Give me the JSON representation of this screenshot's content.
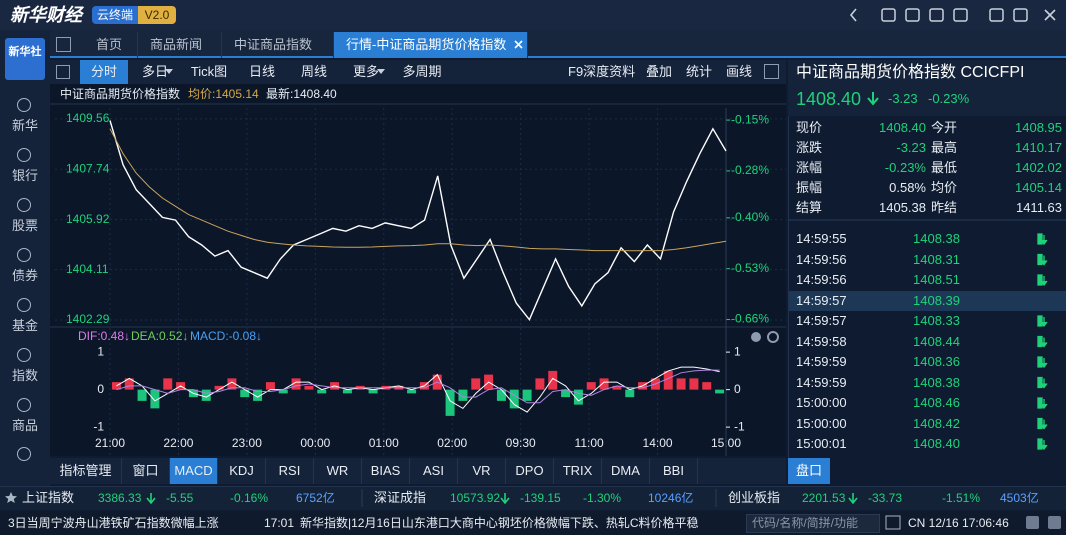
{
  "header": {
    "logo": "新华财经",
    "badge": "云终端",
    "version": "V2.0"
  },
  "sidebar": {
    "logo": "新华社",
    "items": [
      "新华",
      "银行",
      "股票",
      "债券",
      "基金",
      "指数",
      "商品"
    ]
  },
  "tabs": [
    "首页",
    "商品新闻",
    "中证商品指数",
    "行情-中证商品期货价格指数"
  ],
  "toolbar": {
    "left": [
      "分时",
      "多日",
      "Tick图",
      "日线",
      "周线",
      "更多",
      "多周期"
    ],
    "right": [
      "F9深度资料",
      "叠加",
      "统计",
      "画线"
    ]
  },
  "chart_info": {
    "name": "中证商品期货价格指数",
    "avg": "均价:1405.14",
    "last": "最新:1408.40"
  },
  "chart_data": [
    {
      "type": "line",
      "x_labels": [
        "21:00",
        "22:00",
        "23:00",
        "00:00",
        "01:00",
        "02:00",
        "09:30",
        "11:00",
        "14:00",
        "15:00"
      ],
      "series": [
        {
          "color": "#ffffff",
          "values": [
            1409.5,
            1407.9,
            1407.0,
            1406.5,
            1406.0,
            1405.9,
            1405.3,
            1405.0,
            1404.6,
            1404.8,
            1404.2,
            1404.0,
            1403.8,
            1404.5,
            1405.0,
            1405.2,
            1405.4,
            1405.6,
            1405.5,
            1405.7,
            1405.6,
            1405.8,
            1405.7,
            1405.6,
            1405.9,
            1407.5,
            1405.0,
            1403.8,
            1404.5,
            1405.2,
            1404.0,
            1402.9,
            1402.3,
            1403.4,
            1404.5,
            1403.5,
            1402.8,
            1403.6,
            1404.0,
            1404.9,
            1404.4,
            1405.0,
            1404.5,
            1406.2,
            1407.3,
            1408.3,
            1409.2,
            1408.4
          ]
        },
        {
          "color": "#c9a55a",
          "values": [
            1409.2,
            1408.3,
            1407.6,
            1407.1,
            1406.7,
            1406.4,
            1406.1,
            1405.9,
            1405.7,
            1405.5,
            1405.35,
            1405.2,
            1405.1,
            1405.05,
            1405.0,
            1404.97,
            1404.95,
            1404.93,
            1404.92,
            1404.92,
            1404.93,
            1404.95,
            1404.97,
            1404.98,
            1405.0,
            1405.05,
            1405.05,
            1405.0,
            1404.98,
            1405.0,
            1404.97,
            1404.93,
            1404.88,
            1404.86,
            1404.86,
            1404.84,
            1404.82,
            1404.8,
            1404.8,
            1404.8,
            1404.79,
            1404.8,
            1404.8,
            1404.84,
            1404.9,
            1404.98,
            1405.06,
            1405.14
          ]
        }
      ],
      "ylim": [
        1402.11,
        1409.7
      ],
      "yticks": [
        1409.56,
        1407.74,
        1405.92,
        1404.11,
        1402.29
      ],
      "y2lim": [
        -0.674,
        -0.137
      ],
      "y2ticks": [
        {
          "value": -0.15,
          "label": "-0.15%"
        },
        {
          "value": -0.28,
          "label": "-0.28%"
        },
        {
          "value": -0.4,
          "label": "-0.40%"
        },
        {
          "value": -0.53,
          "label": "-0.53%"
        },
        {
          "value": -0.66,
          "label": "-0.66%"
        }
      ],
      "grid": true
    },
    {
      "type": "bar",
      "legend": [
        {
          "label": "DIF:0.48↓",
          "color": "#e07ce8"
        },
        {
          "label": "DEA:0.52↓",
          "color": "#6fcf5a"
        },
        {
          "label": "MACD:-0.08↓",
          "color": "#4aa0f0"
        }
      ],
      "values": [
        0.2,
        0.3,
        -0.3,
        -0.5,
        0.3,
        0.2,
        -0.2,
        -0.3,
        0.1,
        0.3,
        -0.2,
        -0.3,
        0.2,
        -0.1,
        0.3,
        0.1,
        -0.1,
        0.2,
        -0.1,
        0.1,
        -0.1,
        0.1,
        0.1,
        -0.1,
        0.2,
        0.4,
        -0.7,
        -0.3,
        0.3,
        0.4,
        -0.3,
        -0.5,
        -0.3,
        0.3,
        0.5,
        -0.2,
        -0.4,
        0.2,
        0.3,
        0.1,
        -0.2,
        0.2,
        0.3,
        0.5,
        0.3,
        0.3,
        0.2,
        -0.1
      ],
      "colors": {
        "up": "#e8334a",
        "down": "#1cc47e"
      },
      "series": [
        {
          "color": "#ffffff",
          "values": [
            0.1,
            0.3,
            0.1,
            -0.3,
            -0.1,
            0.1,
            -0.1,
            -0.2,
            0,
            0.2,
            0,
            -0.2,
            0,
            0,
            0.2,
            0.2,
            0,
            0.1,
            0,
            0.05,
            0,
            0.05,
            0.1,
            0,
            0.1,
            0.4,
            -0.3,
            -0.5,
            -0.1,
            0.2,
            0,
            -0.4,
            -0.6,
            -0.2,
            0.3,
            0.1,
            -0.3,
            -0.1,
            0.2,
            0.2,
            0,
            0.1,
            0.3,
            0.5,
            0.6,
            0.6,
            0.55,
            0.48
          ]
        },
        {
          "color": "#b084e0",
          "values": [
            0,
            0.1,
            0.1,
            0,
            -0.1,
            0,
            0,
            -0.1,
            -0.05,
            0.05,
            0.05,
            -0.05,
            -0.05,
            0,
            0.1,
            0.15,
            0.1,
            0.05,
            0.05,
            0.05,
            0.05,
            0.05,
            0.05,
            0.05,
            0.05,
            0.2,
            0.05,
            -0.2,
            -0.2,
            0,
            0.05,
            -0.15,
            -0.35,
            -0.35,
            -0.05,
            0,
            -0.1,
            -0.15,
            0,
            0.1,
            0.05,
            0.05,
            0.15,
            0.3,
            0.45,
            0.5,
            0.52,
            0.52
          ]
        }
      ],
      "ylim": [
        -1.13,
        1.19
      ],
      "yticks": [
        1,
        0,
        -1
      ]
    }
  ],
  "indicator_tabs": [
    "指标管理",
    "窗口",
    "MACD",
    "KDJ",
    "RSI",
    "WR",
    "BIAS",
    "ASI",
    "VR",
    "DPO",
    "TRIX",
    "DMA",
    "BBI"
  ],
  "quote": {
    "title": "中证商品期货价格指数  CCICFPI",
    "price": "1408.40",
    "change": "-3.23",
    "pct": "-0.23%",
    "stats": [
      [
        "现价",
        "1408.40",
        "今开",
        "1408.95"
      ],
      [
        "涨跌",
        "-3.23",
        "最高",
        "1410.17"
      ],
      [
        "涨幅",
        "-0.23%",
        "最低",
        "1402.02"
      ],
      [
        "振幅",
        "0.58%",
        "均价",
        "1405.14"
      ],
      [
        "结算",
        "1405.38",
        "昨结",
        "1411.63"
      ]
    ],
    "ticks": [
      [
        "14:59:55",
        "1408.38"
      ],
      [
        "14:59:56",
        "1408.31"
      ],
      [
        "14:59:56",
        "1408.51"
      ],
      [
        "14:59:57",
        "1408.39"
      ],
      [
        "14:59:57",
        "1408.33"
      ],
      [
        "14:59:58",
        "1408.44"
      ],
      [
        "14:59:59",
        "1408.36"
      ],
      [
        "14:59:59",
        "1408.38"
      ],
      [
        "15:00:00",
        "1408.46"
      ],
      [
        "15:00:00",
        "1408.42"
      ],
      [
        "15:00:01",
        "1408.40"
      ]
    ],
    "tab": "盘口"
  },
  "market": [
    {
      "name": "上证指数",
      "value": "3386.33",
      "change": "-5.55",
      "pct": "-0.16%",
      "turnover": "6752亿"
    },
    {
      "name": "深证成指",
      "value": "10573.92",
      "change": "-139.15",
      "pct": "-1.30%",
      "turnover": "10246亿"
    },
    {
      "name": "创业板指",
      "value": "2201.53",
      "change": "-33.73",
      "pct": "-1.51%",
      "turnover": "4503亿"
    }
  ],
  "news": {
    "left": "3日当周宁波舟山港铁矿石指数微幅上涨",
    "time": "17:01",
    "headline": "新华指数|12月16日山东港口大商中心钢坯价格微幅下跌、热轧C料价格平稳",
    "search": "代码/名称/简拼/功能",
    "clock": "CN 12/16 17:06:46"
  }
}
